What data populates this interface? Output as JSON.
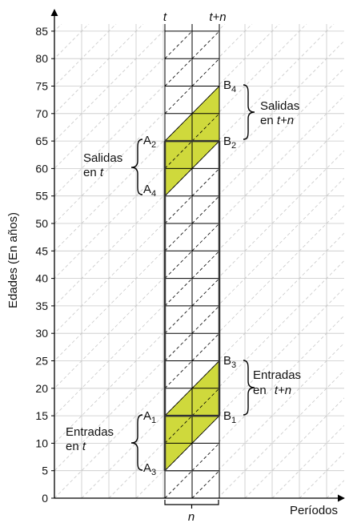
{
  "chart_data": {
    "type": "lexis-diagram",
    "y_axis": {
      "label": "Edades (En años)",
      "ticks": [
        "0",
        "5",
        "10",
        "15",
        "20",
        "25",
        "30",
        "35",
        "40",
        "45",
        "50",
        "55",
        "60",
        "65",
        "70",
        "75",
        "80",
        "85"
      ],
      "ylim": [
        0,
        85
      ]
    },
    "x_axis": {
      "label": "Períodos"
    },
    "period_labels": {
      "t": "t",
      "t_plus_n": "t+n",
      "n": "n"
    },
    "points": {
      "A1": {
        "letter": "A",
        "sub": "1",
        "age": 15
      },
      "A2": {
        "letter": "A",
        "sub": "2",
        "age": 65
      },
      "A3": {
        "letter": "A",
        "sub": "3",
        "age": 5
      },
      "A4": {
        "letter": "A",
        "sub": "4",
        "age": 55
      },
      "B1": {
        "letter": "B",
        "sub": "1",
        "age": 15
      },
      "B2": {
        "letter": "B",
        "sub": "2",
        "age": 65
      },
      "B3": {
        "letter": "B",
        "sub": "3",
        "age": 25
      },
      "B4": {
        "letter": "B",
        "sub": "4",
        "age": 75
      }
    },
    "regions": {
      "entradas_t": {
        "line1": "Entradas",
        "line2_prefix": "en ",
        "line2_italic": "t"
      },
      "entradas_tn": {
        "line1": "Entradas",
        "line2_prefix": "en ",
        "line2_italic": "t+n"
      },
      "salidas_t": {
        "line1": "Salidas",
        "line2_prefix": "en ",
        "line2_italic": "t"
      },
      "salidas_tn": {
        "line1": "Salidas",
        "line2_prefix": "en ",
        "line2_italic": "t+n"
      }
    },
    "shaded_cohorts": [
      {
        "age_at_t_from": 5,
        "age_at_t_to": 15
      },
      {
        "age_at_t_from": 55,
        "age_at_t_to": 65
      }
    ],
    "highlighted_ages": [
      15,
      65
    ],
    "colors": {
      "fill": "#cfd93c",
      "grid": "#c8c8c8",
      "frame": "#333333"
    }
  }
}
